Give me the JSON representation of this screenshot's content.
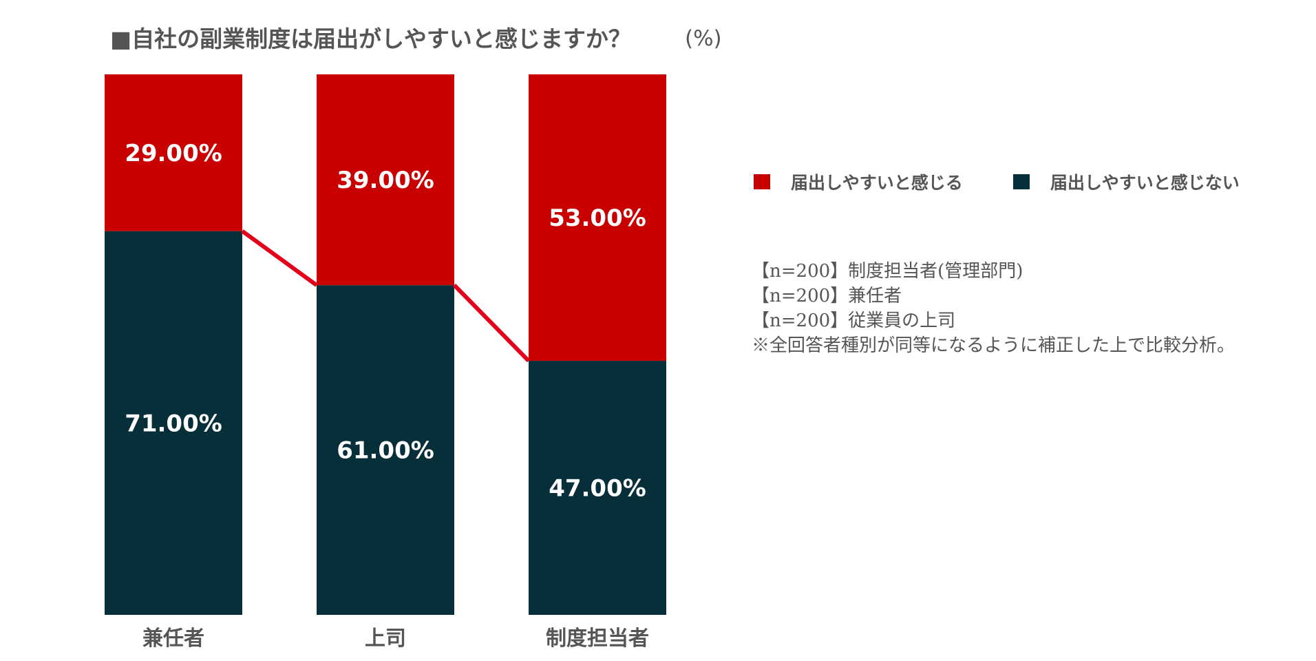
{
  "chart_data": {
    "type": "bar",
    "stacked": true,
    "normalized_percent": true,
    "title": "■自社の副業制度は届出がしやすいと感じますか？",
    "unit_label": "(%)",
    "categories": [
      "兼任者",
      "上司",
      "制度担当者"
    ],
    "series": [
      {
        "name": "届出しやすいと感じない",
        "color": "#072f3a",
        "values": [
          71.0,
          61.0,
          47.0
        ]
      },
      {
        "name": "届出しやすいと感じる",
        "color": "#c80000",
        "values": [
          29.0,
          39.0,
          53.0
        ]
      }
    ],
    "value_label_format": "0.00%",
    "connector_color": "#e3001b",
    "ylim": [
      0,
      100
    ],
    "grid": false,
    "legend_position": "right",
    "legend_order": [
      "届出しやすいと感じる",
      "届出しやすいと感じない"
    ]
  },
  "notes": [
    "【n=200】制度担当者(管理部門)",
    "【n=200】兼任者",
    "【n=200】従業員の上司",
    "※全回答者種別が同等になるように補正した上で比較分析。"
  ]
}
